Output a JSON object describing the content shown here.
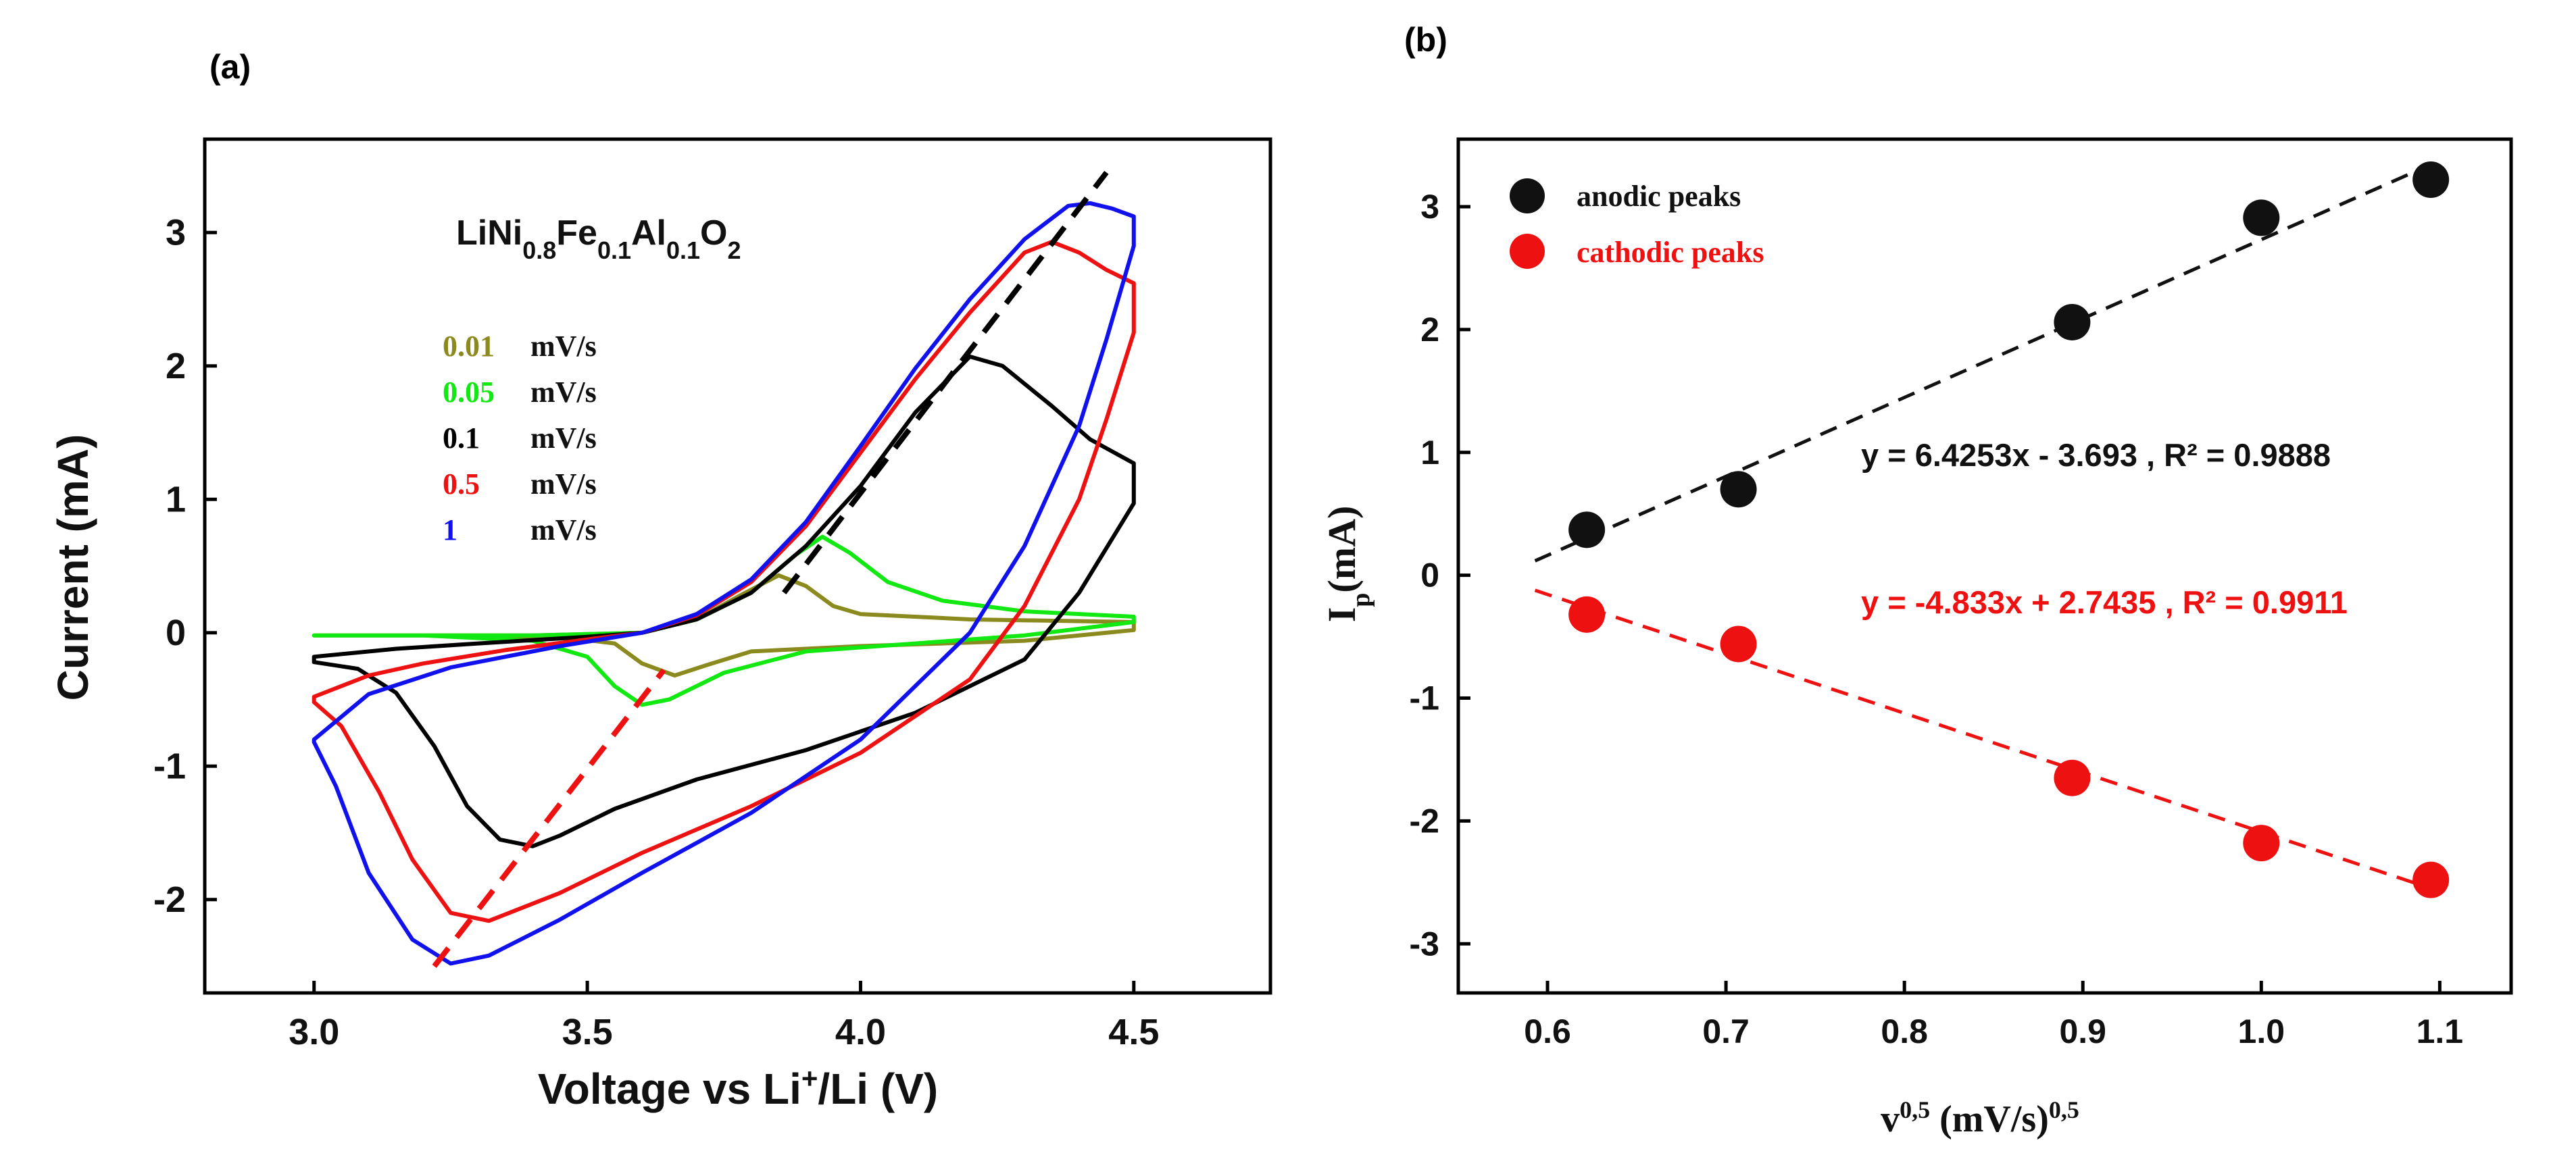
{
  "chart_data": [
    {
      "panel_label": "(a)",
      "type": "line",
      "title": "LiNi0.8Fe0.1Al0.1O2",
      "title_parts": {
        "base1": "LiNi",
        "sub1": "0.8",
        "base2": "Fe",
        "sub2": "0.1",
        "base3": "Al",
        "sub3": "0.1",
        "base4": "O",
        "sub4": "2"
      },
      "xlabel_parts": {
        "pre": "Voltage vs Li",
        "sup": "+",
        "post": "/Li (V)"
      },
      "xlabel": "Voltage vs Li+/Li (V)",
      "ylabel": "Current (mA)",
      "xlim": [
        2.8,
        4.75
      ],
      "ylim": [
        -2.7,
        3.7
      ],
      "xticks": [
        "3.0",
        "3.5",
        "4.0",
        "4.5"
      ],
      "yticks": [
        "-2",
        "-1",
        "0",
        "1",
        "2",
        "3"
      ],
      "legend": {
        "unit": "mV/s",
        "entries": [
          {
            "rate": "0.01",
            "color": "#8b8a1e"
          },
          {
            "rate": "0.05",
            "color": "#12e812"
          },
          {
            "rate": "0.1",
            "color": "#000000"
          },
          {
            "rate": "0.5",
            "color": "#ee1111"
          },
          {
            "rate": "1",
            "color": "#1111ee"
          }
        ]
      },
      "series": [
        {
          "name": "0.01 mV/s",
          "color": "#8b8a1e",
          "anodic": [
            [
              3.0,
              -0.02
            ],
            [
              3.4,
              -0.02
            ],
            [
              3.6,
              0.0
            ],
            [
              3.7,
              0.1
            ],
            [
              3.78,
              0.28
            ],
            [
              3.85,
              0.43
            ],
            [
              3.9,
              0.35
            ],
            [
              3.95,
              0.2
            ],
            [
              4.0,
              0.14
            ],
            [
              4.2,
              0.1
            ],
            [
              4.5,
              0.08
            ]
          ],
          "cathodic": [
            [
              4.5,
              0.02
            ],
            [
              4.3,
              -0.06
            ],
            [
              4.0,
              -0.1
            ],
            [
              3.8,
              -0.14
            ],
            [
              3.72,
              -0.24
            ],
            [
              3.66,
              -0.32
            ],
            [
              3.6,
              -0.23
            ],
            [
              3.55,
              -0.08
            ],
            [
              3.45,
              -0.03
            ],
            [
              3.2,
              -0.02
            ],
            [
              3.0,
              -0.02
            ]
          ]
        },
        {
          "name": "0.05 mV/s",
          "color": "#12e812",
          "anodic": [
            [
              3.0,
              -0.02
            ],
            [
              3.4,
              -0.02
            ],
            [
              3.6,
              0.0
            ],
            [
              3.7,
              0.1
            ],
            [
              3.8,
              0.3
            ],
            [
              3.88,
              0.58
            ],
            [
              3.93,
              0.72
            ],
            [
              3.98,
              0.6
            ],
            [
              4.05,
              0.38
            ],
            [
              4.15,
              0.24
            ],
            [
              4.3,
              0.16
            ],
            [
              4.5,
              0.12
            ]
          ],
          "cathodic": [
            [
              4.5,
              0.08
            ],
            [
              4.3,
              -0.02
            ],
            [
              4.1,
              -0.08
            ],
            [
              3.9,
              -0.14
            ],
            [
              3.75,
              -0.3
            ],
            [
              3.65,
              -0.5
            ],
            [
              3.6,
              -0.54
            ],
            [
              3.55,
              -0.4
            ],
            [
              3.5,
              -0.18
            ],
            [
              3.4,
              -0.06
            ],
            [
              3.2,
              -0.02
            ],
            [
              3.0,
              -0.02
            ]
          ]
        },
        {
          "name": "0.1 mV/s",
          "color": "#000000",
          "anodic": [
            [
              3.0,
              -0.18
            ],
            [
              3.15,
              -0.12
            ],
            [
              3.3,
              -0.08
            ],
            [
              3.5,
              -0.03
            ],
            [
              3.6,
              0.0
            ],
            [
              3.7,
              0.1
            ],
            [
              3.8,
              0.3
            ],
            [
              3.9,
              0.65
            ],
            [
              4.0,
              1.1
            ],
            [
              4.1,
              1.65
            ],
            [
              4.2,
              2.07
            ],
            [
              4.26,
              2.0
            ],
            [
              4.35,
              1.7
            ],
            [
              4.42,
              1.45
            ],
            [
              4.5,
              1.27
            ]
          ],
          "cathodic": [
            [
              4.5,
              0.97
            ],
            [
              4.4,
              0.3
            ],
            [
              4.3,
              -0.2
            ],
            [
              4.1,
              -0.6
            ],
            [
              3.9,
              -0.88
            ],
            [
              3.7,
              -1.1
            ],
            [
              3.55,
              -1.32
            ],
            [
              3.45,
              -1.52
            ],
            [
              3.4,
              -1.6
            ],
            [
              3.34,
              -1.55
            ],
            [
              3.28,
              -1.3
            ],
            [
              3.22,
              -0.85
            ],
            [
              3.15,
              -0.45
            ],
            [
              3.08,
              -0.27
            ],
            [
              3.0,
              -0.22
            ]
          ]
        },
        {
          "name": "0.5 mV/s",
          "color": "#ee1111",
          "anodic": [
            [
              3.0,
              -0.48
            ],
            [
              3.1,
              -0.32
            ],
            [
              3.2,
              -0.23
            ],
            [
              3.35,
              -0.13
            ],
            [
              3.5,
              -0.05
            ],
            [
              3.6,
              0.0
            ],
            [
              3.7,
              0.13
            ],
            [
              3.8,
              0.38
            ],
            [
              3.9,
              0.8
            ],
            [
              4.0,
              1.35
            ],
            [
              4.1,
              1.9
            ],
            [
              4.2,
              2.4
            ],
            [
              4.3,
              2.85
            ],
            [
              4.35,
              2.93
            ],
            [
              4.4,
              2.85
            ],
            [
              4.45,
              2.72
            ],
            [
              4.5,
              2.62
            ]
          ],
          "cathodic": [
            [
              4.5,
              2.25
            ],
            [
              4.45,
              1.6
            ],
            [
              4.4,
              1.0
            ],
            [
              4.3,
              0.2
            ],
            [
              4.2,
              -0.35
            ],
            [
              4.0,
              -0.9
            ],
            [
              3.8,
              -1.3
            ],
            [
              3.6,
              -1.65
            ],
            [
              3.45,
              -1.95
            ],
            [
              3.32,
              -2.16
            ],
            [
              3.25,
              -2.1
            ],
            [
              3.18,
              -1.7
            ],
            [
              3.12,
              -1.2
            ],
            [
              3.05,
              -0.7
            ],
            [
              3.0,
              -0.52
            ]
          ]
        },
        {
          "name": "1 mV/s",
          "color": "#1111ee",
          "anodic": [
            [
              3.0,
              -0.8
            ],
            [
              3.1,
              -0.46
            ],
            [
              3.25,
              -0.26
            ],
            [
              3.45,
              -0.1
            ],
            [
              3.6,
              0.0
            ],
            [
              3.7,
              0.14
            ],
            [
              3.8,
              0.4
            ],
            [
              3.9,
              0.83
            ],
            [
              4.0,
              1.4
            ],
            [
              4.1,
              1.98
            ],
            [
              4.2,
              2.5
            ],
            [
              4.3,
              2.95
            ],
            [
              4.38,
              3.2
            ],
            [
              4.42,
              3.22
            ],
            [
              4.46,
              3.18
            ],
            [
              4.5,
              3.12
            ]
          ],
          "cathodic": [
            [
              4.5,
              2.9
            ],
            [
              4.45,
              2.2
            ],
            [
              4.4,
              1.55
            ],
            [
              4.3,
              0.65
            ],
            [
              4.2,
              0.0
            ],
            [
              4.0,
              -0.8
            ],
            [
              3.8,
              -1.35
            ],
            [
              3.6,
              -1.8
            ],
            [
              3.45,
              -2.15
            ],
            [
              3.32,
              -2.42
            ],
            [
              3.25,
              -2.48
            ],
            [
              3.18,
              -2.3
            ],
            [
              3.1,
              -1.8
            ],
            [
              3.04,
              -1.15
            ],
            [
              3.0,
              -0.82
            ]
          ]
        }
      ],
      "guide_lines": [
        {
          "color": "#000000",
          "from": [
            3.86,
            0.3
          ],
          "to": [
            4.45,
            3.45
          ]
        },
        {
          "color": "#ee1111",
          "from": [
            3.22,
            -2.5
          ],
          "to": [
            3.64,
            -0.28
          ]
        }
      ]
    },
    {
      "panel_label": "(b)",
      "type": "scatter",
      "xlabel": "v0,5 (mV/s)0,5",
      "xlabel_parts": {
        "v": "v",
        "sup1": "0,5",
        "mid": " (mV/s)",
        "sup2": "0,5"
      },
      "ylabel": "Ip(mA)",
      "ylabel_parts": {
        "base": "I",
        "sub": "p",
        "rest": "(mA)"
      },
      "xlim": [
        0.55,
        1.14
      ],
      "ylim": [
        -3.4,
        3.55
      ],
      "xticks": [
        "0.6",
        "0.7",
        "0.8",
        "0.9",
        "1.0",
        "1.1"
      ],
      "yticks": [
        "-3",
        "-2",
        "-1",
        "0",
        "1",
        "2",
        "3"
      ],
      "series": [
        {
          "name": "anodic peaks",
          "color": "#111111",
          "x": [
            0.622,
            0.707,
            0.894,
            1.0,
            1.095
          ],
          "y": [
            0.37,
            0.7,
            2.06,
            2.91,
            3.22
          ],
          "fit": {
            "equation": "y = 6.4253x - 3.693 , R² = 0.9888",
            "line_color": "#111111",
            "x_range": [
              0.593,
              1.095
            ],
            "slope": 6.4253,
            "intercept": -3.693
          }
        },
        {
          "name": "cathodic peaks",
          "color": "#ee1111",
          "x": [
            0.622,
            0.707,
            0.894,
            1.0,
            1.095
          ],
          "y": [
            -0.32,
            -0.56,
            -1.65,
            -2.18,
            -2.48
          ],
          "fit": {
            "equation": "y = -4.833x + 2.7435 , R² = 0.9911",
            "line_color": "#ee1111",
            "x_range": [
              0.593,
              1.095
            ],
            "slope": -4.833,
            "intercept": 2.7435
          }
        }
      ]
    }
  ]
}
